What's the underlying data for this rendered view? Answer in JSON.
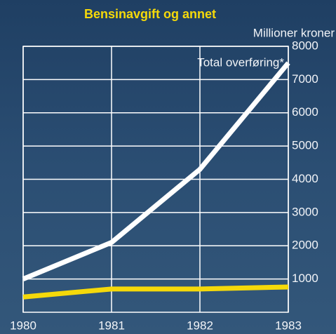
{
  "chart_data": {
    "type": "line",
    "title": "Bensinavgift og annet",
    "y_label": "Millioner kroner",
    "x": [
      1980,
      1981,
      1982,
      1983
    ],
    "xlim": [
      1980,
      1983
    ],
    "xticks": [
      1980,
      1981,
      1982,
      1983
    ],
    "ylim": [
      0,
      8000
    ],
    "yticks": [
      1000,
      2000,
      3000,
      4000,
      5000,
      6000,
      7000,
      8000
    ],
    "grid": true,
    "series": [
      {
        "name": "Total overføring*",
        "color": "#ffffff",
        "values": [
          1000,
          2100,
          4300,
          7500
        ]
      },
      {
        "color": "#f5d90a",
        "values": [
          460,
          700,
          700,
          760
        ]
      }
    ]
  }
}
